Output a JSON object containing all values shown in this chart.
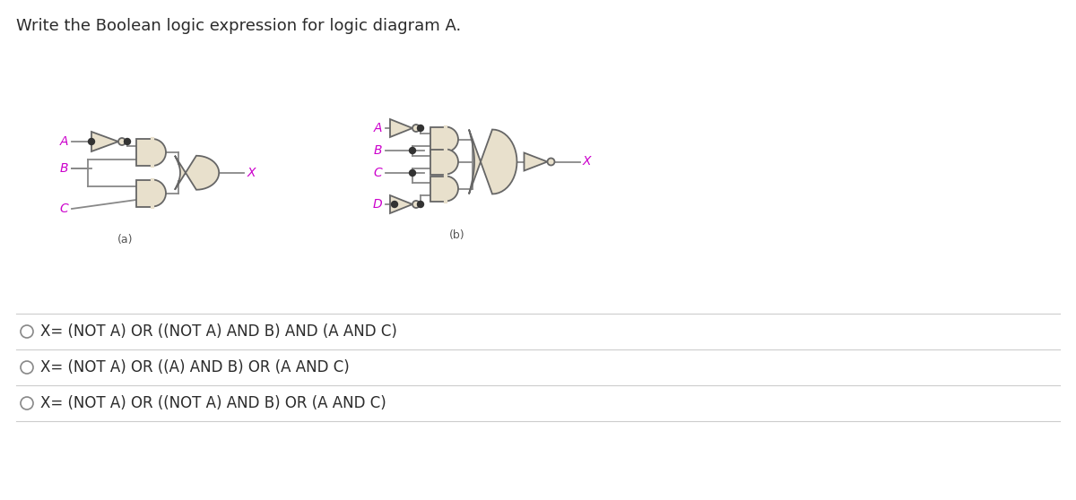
{
  "title": "Write the Boolean logic expression for logic diagram A.",
  "title_fontsize": 13,
  "title_color": "#2b2b2b",
  "background_color": "#ffffff",
  "options": [
    "X= (NOT A) OR ((NOT A) AND B) AND (A AND C)",
    "X= (NOT A) OR ((A) AND B) OR (A AND C)",
    "X= (NOT A) OR ((NOT A) AND B) OR (A AND C)"
  ],
  "option_fontsize": 12,
  "option_color": "#2b2b2b",
  "label_color": "#cc00cc",
  "gate_fill": "#e8e0cc",
  "gate_edge": "#666666",
  "wire_color": "#888888",
  "dot_color": "#333333",
  "diagram_a_label": "(a)",
  "diagram_b_label": "(b)",
  "divider_color": "#cccccc",
  "circle_color": "#888888"
}
